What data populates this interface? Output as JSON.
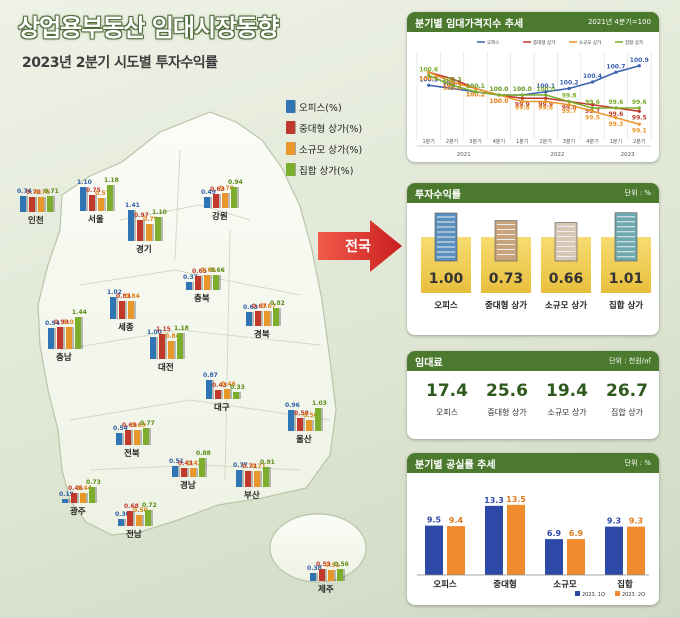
{
  "title": "상업용부동산 임대시장동향",
  "subtitle": "2023년 2분기 시도별 투자수익률",
  "legend": [
    {
      "label": "오피스(%)",
      "color": "#2f74b5"
    },
    {
      "label": "중대형 상가(%)",
      "color": "#c0392b"
    },
    {
      "label": "소규모 상가(%)",
      "color": "#e9962a"
    },
    {
      "label": "집합 상가(%)",
      "color": "#7cad2c"
    }
  ],
  "arrow_label": "전국",
  "chart_data": [
    {
      "type": "bar",
      "series_names": [
        "오피스",
        "중대형 상가",
        "소규모 상가",
        "집합 상가"
      ],
      "regions": [
        {
          "name": "인천",
          "values": [
            0.74,
            0.7,
            0.7,
            0.71
          ]
        },
        {
          "name": "서울",
          "values": [
            1.1,
            0.75,
            0.57,
            1.18
          ]
        },
        {
          "name": "강원",
          "values": [
            0.49,
            0.63,
            0.7,
            0.94
          ]
        },
        {
          "name": "경기",
          "values": [
            1.41,
            0.97,
            0.79,
            1.1
          ]
        },
        {
          "name": "충북",
          "values": [
            0.37,
            0.65,
            0.66,
            0.66
          ]
        },
        {
          "name": "세종",
          "values": [
            1.02,
            0.83,
            0.84,
            null
          ]
        },
        {
          "name": "경북",
          "values": [
            0.63,
            0.67,
            0.67,
            0.82
          ]
        },
        {
          "name": "충남",
          "values": [
            0.94,
            0.99,
            1.01,
            1.44
          ]
        },
        {
          "name": "대전",
          "values": [
            1.0,
            1.15,
            0.84,
            1.18
          ]
        },
        {
          "name": "대구",
          "values": [
            0.87,
            0.43,
            0.46,
            0.33
          ]
        },
        {
          "name": "울산",
          "values": [
            0.96,
            0.58,
            0.5,
            1.03
          ]
        },
        {
          "name": "전북",
          "values": [
            0.54,
            0.69,
            0.69,
            0.77
          ]
        },
        {
          "name": "경남",
          "values": [
            0.51,
            0.43,
            0.43,
            0.88
          ]
        },
        {
          "name": "부산",
          "values": [
            0.77,
            0.73,
            0.71,
            0.91
          ]
        },
        {
          "name": "광주",
          "values": [
            0.19,
            0.46,
            0.44,
            0.73
          ]
        },
        {
          "name": "전남",
          "values": [
            0.3,
            0.68,
            0.5,
            0.72
          ]
        },
        {
          "name": "제주",
          "values": [
            0.38,
            0.53,
            0.51,
            0.56
          ]
        }
      ]
    },
    {
      "type": "line",
      "title": "분기별 임대가격지수 추세",
      "note": "2021년 4분기=100",
      "categories": [
        "1분기",
        "2분기",
        "3분기",
        "4분기",
        "1분기",
        "2분기",
        "3분기",
        "4분기",
        "1분기",
        "2분기"
      ],
      "years": [
        "2021",
        "2022",
        "2023"
      ],
      "series": [
        {
          "name": "오피스",
          "color": "#3a5fb0",
          "values": [
            100.3,
            100.2,
            100.1,
            100.0,
            100.0,
            100.1,
            100.2,
            100.4,
            100.7,
            100.9
          ]
        },
        {
          "name": "중대형 상가",
          "color": "#c0392b",
          "values": [
            100.7,
            100.5,
            100.2,
            100.0,
            99.9,
            99.9,
            99.8,
            99.7,
            99.6,
            99.5
          ]
        },
        {
          "name": "소규모 상가",
          "color": "#e9962a",
          "values": [
            100.7,
            100.4,
            100.2,
            100.0,
            99.8,
            99.8,
            99.7,
            99.5,
            99.3,
            99.1
          ]
        },
        {
          "name": "집합 상가",
          "color": "#7cad2c",
          "values": [
            100.6,
            100.3,
            100.1,
            100.0,
            100.0,
            100.0,
            99.8,
            99.6,
            99.6,
            99.6
          ]
        }
      ]
    },
    {
      "type": "bar",
      "title": "투자수익률",
      "unit": "단위 : %",
      "categories": [
        "오피스",
        "중대형 상가",
        "소규모 상가",
        "집합 상가"
      ],
      "values": [
        1.0,
        0.73,
        0.66,
        1.01
      ]
    },
    {
      "type": "table",
      "title": "임대료",
      "unit": "단위 : 천원/㎡",
      "categories": [
        "오피스",
        "중대형 상가",
        "소규모 상가",
        "집합 상가"
      ],
      "values": [
        17.4,
        25.6,
        19.4,
        26.7
      ]
    },
    {
      "type": "bar",
      "title": "분기별 공실률 추세",
      "unit": "단위 : %",
      "categories": [
        "오피스",
        "중대형",
        "소규모",
        "집합"
      ],
      "series": [
        {
          "name": "2023. 1Q",
          "color": "#2c49a8",
          "values": [
            9.5,
            13.3,
            6.9,
            9.3
          ]
        },
        {
          "name": "2023. 2Q",
          "color": "#f08a2e",
          "values": [
            9.4,
            13.5,
            6.9,
            9.3
          ]
        }
      ]
    }
  ]
}
